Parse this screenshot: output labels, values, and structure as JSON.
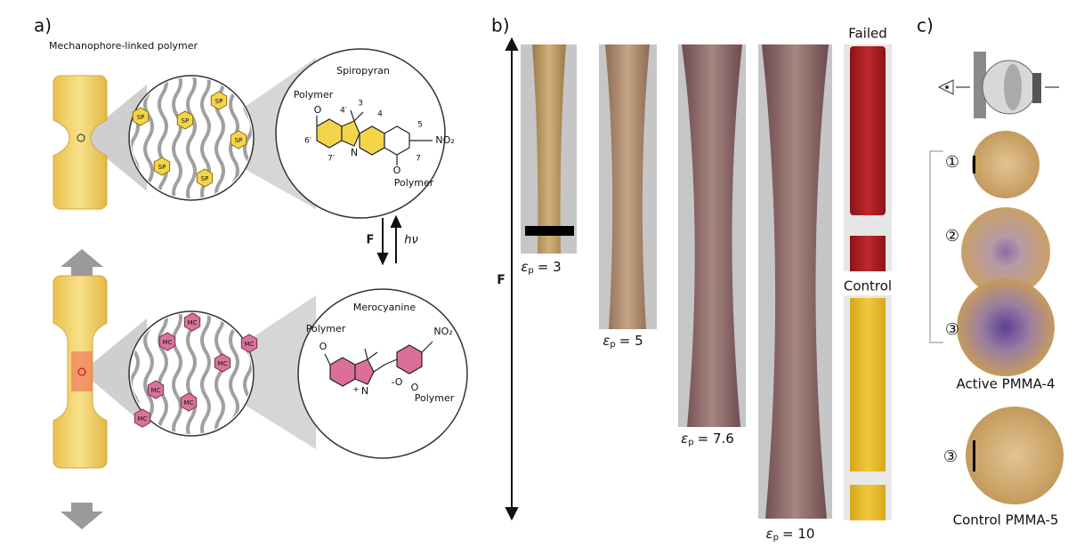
{
  "panel_a": {
    "label": "a)",
    "caption": "Mechanophore-linked polymer",
    "sp_labels": [
      "SP",
      "SP",
      "SP",
      "SP",
      "SP",
      "SP"
    ],
    "mc_labels": [
      "MC",
      "MC",
      "MC",
      "MC",
      "MC",
      "MC",
      "MC"
    ],
    "spiropyran": {
      "title": "Spiropyran",
      "polymer_top": "Polymer",
      "o_top": "O",
      "pos_4p": "4′",
      "pos_3": "3",
      "pos_4": "4",
      "pos_5": "5",
      "pos_6p": "6′",
      "nitrogen": "N",
      "pos_7p": "7′",
      "nitro": "NO₂",
      "pos_7": "7",
      "o_bottom": "O",
      "polymer_bottom": "Polymer"
    },
    "force": "F",
    "light": "hν",
    "merocyanine": {
      "title": "Merocyanine",
      "polymer_top": "Polymer",
      "o_top": "O",
      "nitrogen": "N",
      "charge_plus": "+",
      "nitro": "NO₂",
      "phenolate": "-O",
      "o_bottom": "O",
      "polymer_bottom": "Polymer"
    }
  },
  "panel_b": {
    "label": "b)",
    "force": "F",
    "strips": [
      {
        "symbol": "ε",
        "sub": "p",
        "value": "= 3"
      },
      {
        "symbol": "ε",
        "sub": "p",
        "value": "= 5"
      },
      {
        "symbol": "ε",
        "sub": "p",
        "value": "= 7.6"
      },
      {
        "symbol": "ε",
        "sub": "p",
        "value": "= 10"
      }
    ],
    "failed": "Failed",
    "control": "Control"
  },
  "panel_c": {
    "label": "c)",
    "markers": [
      "①",
      "②",
      "③"
    ],
    "active_caption": "Active PMMA-4",
    "control_marker": "③",
    "control_caption": "Control PMMA-5"
  }
}
